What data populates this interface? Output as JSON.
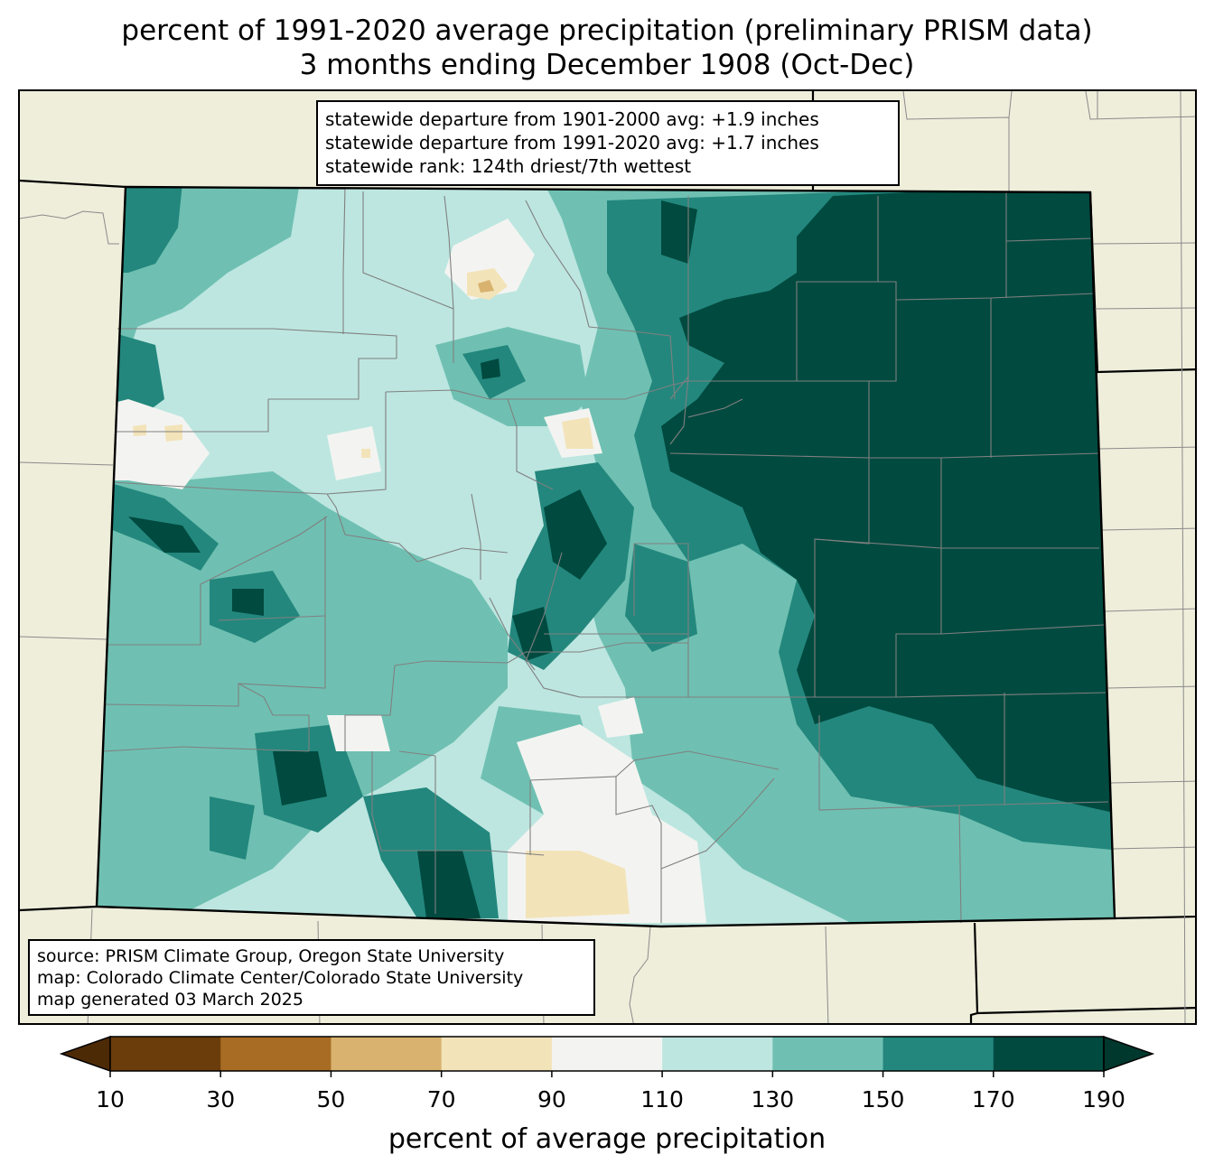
{
  "title": {
    "line1": "percent of 1991-2020 average precipitation (preliminary PRISM data)",
    "line2": "3 months ending December 1908 (Oct-Dec)"
  },
  "stats": {
    "line1": "statewide departure from 1901-2000 avg: +1.9 inches",
    "line2": "statewide departure from 1991-2020 avg: +1.7 inches",
    "line3": "statewide rank: 124th driest/7th wettest"
  },
  "source": {
    "line1": "source: PRISM Climate Group, Oregon State University",
    "line2": "map: Colorado Climate Center/Colorado State University",
    "line3": "map generated 03 March 2025"
  },
  "colorbar": {
    "label": "percent of average precipitation",
    "ticks": [
      "10",
      "30",
      "50",
      "70",
      "90",
      "110",
      "130",
      "150",
      "170",
      "190"
    ],
    "colors": [
      "#6b3d0b",
      "#a86c25",
      "#d8b26e",
      "#f3e3b9",
      "#f3f4f1",
      "#bde6e0",
      "#6fc0b2",
      "#23877d",
      "#004a3f"
    ],
    "under_color": "#4d2a06",
    "over_color": "#00382d"
  },
  "colors": {
    "land": "#efeedb",
    "county_lines": "#808080",
    "state_border": "#000000"
  }
}
